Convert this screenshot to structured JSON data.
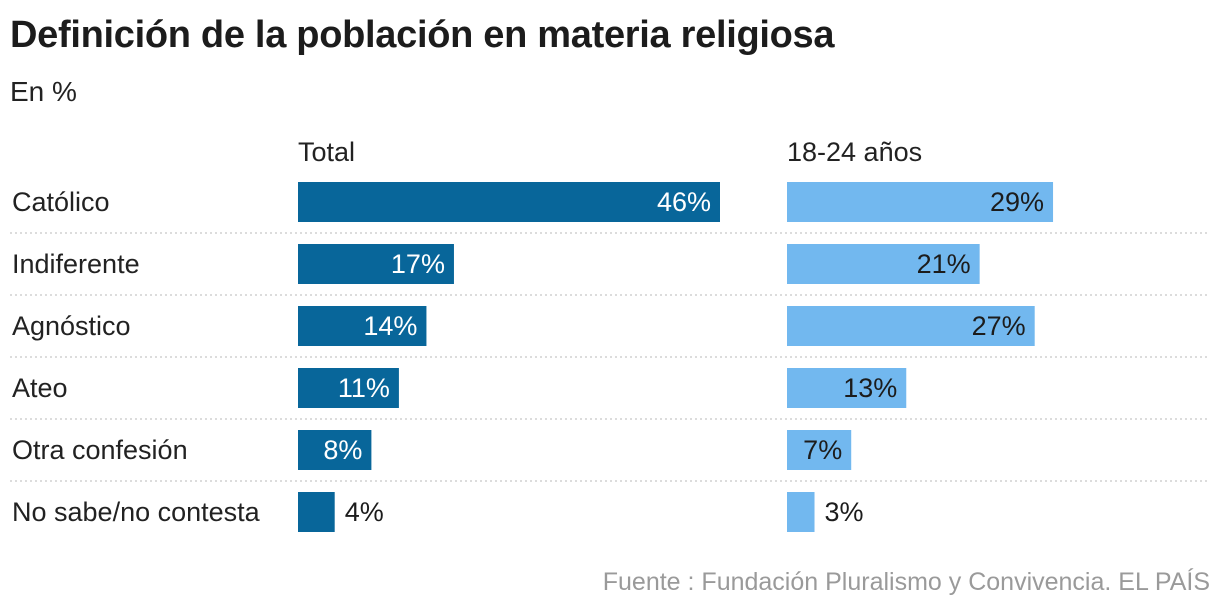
{
  "title": "Definición de la población en materia religiosa",
  "subtitle": "En %",
  "source": "Fuente : Fundación Pluralismo y Convivencia. EL PAÍS",
  "chart_data": {
    "type": "bar",
    "orientation": "horizontal",
    "categories": [
      "Católico",
      "Indiferente",
      "Agnóstico",
      "Ateo",
      "Otra confesión",
      "No sabe/no contesta"
    ],
    "series": [
      {
        "name": "Total",
        "color": "#08669a",
        "values": [
          46,
          17,
          14,
          11,
          8,
          4
        ],
        "labels": [
          "46%",
          "17%",
          "14%",
          "11%",
          "8%",
          "4%"
        ]
      },
      {
        "name": "18-24 años",
        "color": "#72b8ef",
        "values": [
          29,
          21,
          27,
          13,
          7,
          3
        ],
        "labels": [
          "29%",
          "21%",
          "27%",
          "13%",
          "7%",
          "3%"
        ]
      }
    ],
    "xlim": [
      0,
      46
    ],
    "grid": false,
    "legend": "none"
  }
}
